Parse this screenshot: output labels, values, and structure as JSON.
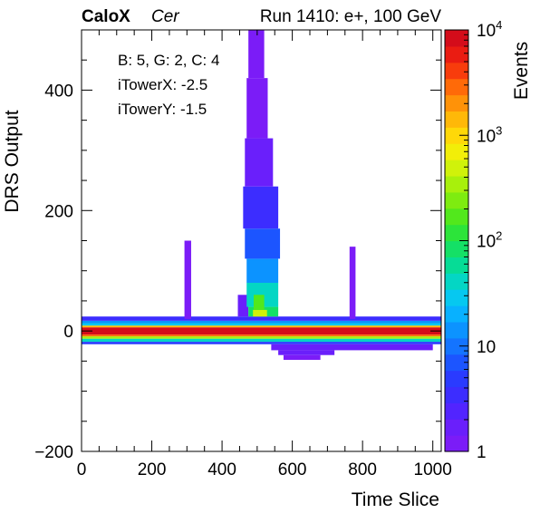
{
  "chart_data": {
    "type": "heatmap",
    "title_parts": {
      "experiment": "CaloX",
      "channel": "Cer",
      "run_info": "Run 1410: e+, 100 GeV"
    },
    "xlabel": "Time Slice",
    "ylabel": "DRS Output",
    "zlabel": "Events",
    "xlim": [
      0,
      1024
    ],
    "ylim": [
      -200,
      500
    ],
    "zscale": "log",
    "zlim": [
      1,
      10000
    ],
    "x_ticks": [
      {
        "value": 0,
        "label": "0"
      },
      {
        "value": 200,
        "label": "200"
      },
      {
        "value": 400,
        "label": "400"
      },
      {
        "value": 600,
        "label": "600"
      },
      {
        "value": 800,
        "label": "800"
      },
      {
        "value": 1000,
        "label": "1000"
      }
    ],
    "y_ticks": [
      {
        "value": -200,
        "label": "−200"
      },
      {
        "value": 0,
        "label": "0"
      },
      {
        "value": 200,
        "label": "200"
      },
      {
        "value": 400,
        "label": "400"
      }
    ],
    "z_ticks": [
      {
        "value": 1,
        "label": "1"
      },
      {
        "value": 10,
        "label": "10"
      },
      {
        "value": 100,
        "label": "10",
        "exp": "2"
      },
      {
        "value": 1000,
        "label": "10",
        "exp": "3"
      },
      {
        "value": 10000,
        "label": "10",
        "exp": "4"
      }
    ],
    "annotations": [
      "B: 5, G: 2, C: 4",
      "iTowerX: -2.5",
      "iTowerY: -1.5"
    ],
    "grid": false,
    "colorbar": "right",
    "palette": [
      "#7b1cf7",
      "#6a1ffb",
      "#5224ff",
      "#3c2dff",
      "#2a3bff",
      "#1c55ff",
      "#1474ff",
      "#0c93ff",
      "#08b1ff",
      "#06c8f0",
      "#04d6c4",
      "#06dc96",
      "#14e066",
      "#2ce43a",
      "#52e81c",
      "#7eec10",
      "#a8f00c",
      "#d0f20a",
      "#f2ee08",
      "#ffd808",
      "#ffb808",
      "#ff9208",
      "#ff6a08",
      "#f83c0c",
      "#ea1c12",
      "#d40c1a"
    ],
    "cells": [
      {
        "x": [
          0,
          1024
        ],
        "y": [
          -6,
          6
        ],
        "z": 8000
      },
      {
        "x": [
          0,
          1024
        ],
        "y": [
          6,
          9
        ],
        "z": 1500
      },
      {
        "x": [
          0,
          1024
        ],
        "y": [
          -9,
          -6
        ],
        "z": 2500
      },
      {
        "x": [
          0,
          1024
        ],
        "y": [
          -13,
          -9
        ],
        "z": 350
      },
      {
        "x": [
          0,
          1024
        ],
        "y": [
          9,
          13
        ],
        "z": 30
      },
      {
        "x": [
          0,
          1024
        ],
        "y": [
          13,
          17
        ],
        "z": 12
      },
      {
        "x": [
          0,
          1024
        ],
        "y": [
          17,
          24
        ],
        "z": 3
      },
      {
        "x": [
          0,
          1024
        ],
        "y": [
          -18,
          -13
        ],
        "z": 40
      },
      {
        "x": [
          0,
          1024
        ],
        "y": [
          -22,
          -18
        ],
        "z": 5
      },
      {
        "x": [
          540,
          1000
        ],
        "y": [
          -32,
          -22
        ],
        "z": 2
      },
      {
        "x": [
          560,
          720
        ],
        "y": [
          -40,
          -32
        ],
        "z": 2
      },
      {
        "x": [
          575,
          680
        ],
        "y": [
          -48,
          -40
        ],
        "z": 1
      },
      {
        "x": [
          445,
          475
        ],
        "y": [
          24,
          60
        ],
        "z": 2
      },
      {
        "x": [
          475,
          560
        ],
        "y": [
          24,
          40
        ],
        "z": 80
      },
      {
        "x": [
          470,
          560
        ],
        "y": [
          40,
          80
        ],
        "z": 40
      },
      {
        "x": [
          470,
          560
        ],
        "y": [
          80,
          120
        ],
        "z": 15
      },
      {
        "x": [
          465,
          565
        ],
        "y": [
          120,
          170
        ],
        "z": 6
      },
      {
        "x": [
          460,
          560
        ],
        "y": [
          170,
          240
        ],
        "z": 3
      },
      {
        "x": [
          465,
          545
        ],
        "y": [
          240,
          320
        ],
        "z": 2
      },
      {
        "x": [
          470,
          530
        ],
        "y": [
          320,
          420
        ],
        "z": 1
      },
      {
        "x": [
          475,
          520
        ],
        "y": [
          420,
          500
        ],
        "z": 1
      },
      {
        "x": [
          488,
          528
        ],
        "y": [
          24,
          35
        ],
        "z": 500
      },
      {
        "x": [
          490,
          520
        ],
        "y": [
          35,
          60
        ],
        "z": 200
      },
      {
        "x": [
          293,
          312
        ],
        "y": [
          20,
          150
        ],
        "z": 1
      },
      {
        "x": [
          763,
          780
        ],
        "y": [
          20,
          140
        ],
        "z": 1
      }
    ]
  }
}
